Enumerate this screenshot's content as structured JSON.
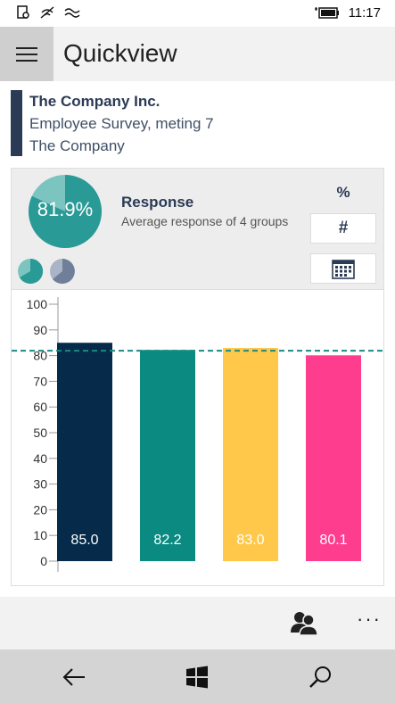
{
  "status_bar": {
    "time": "11:17"
  },
  "header": {
    "title": "Quickview"
  },
  "company": {
    "name": "The Company Inc.",
    "survey": "Employee Survey, meting 7",
    "organization": "The Company"
  },
  "summary": {
    "response_percent_label": "81.9%",
    "response_fraction": 0.819,
    "response_title": "Response",
    "response_subtitle": "Average response of 4 groups",
    "percent_button": "%",
    "count_button": "#"
  },
  "chart_data": {
    "type": "bar",
    "categories": [
      "",
      "",
      "",
      ""
    ],
    "values": [
      85.0,
      82.2,
      83.0,
      80.1
    ],
    "value_labels": [
      "85.0",
      "82.2",
      "83.0",
      "80.1"
    ],
    "colors": [
      "#062b4a",
      "#0b8a82",
      "#ffc84a",
      "#ff3d8e"
    ],
    "ylim": [
      0,
      100
    ],
    "yticks": [
      0,
      10,
      20,
      30,
      40,
      50,
      60,
      70,
      80,
      90,
      100
    ],
    "average_line": 81.9,
    "average_line_color": "#1a8a82"
  },
  "colors": {
    "accent": "#2b3a55",
    "pie_main": "#2a9a96",
    "pie_light": "#7cc4c0"
  },
  "icons": {
    "menu": "hamburger-icon",
    "groups": "people-icon",
    "more": "more-icon",
    "back": "back-arrow-icon",
    "home": "windows-icon",
    "search": "search-icon"
  },
  "command_bar": {
    "more_label": "···"
  }
}
